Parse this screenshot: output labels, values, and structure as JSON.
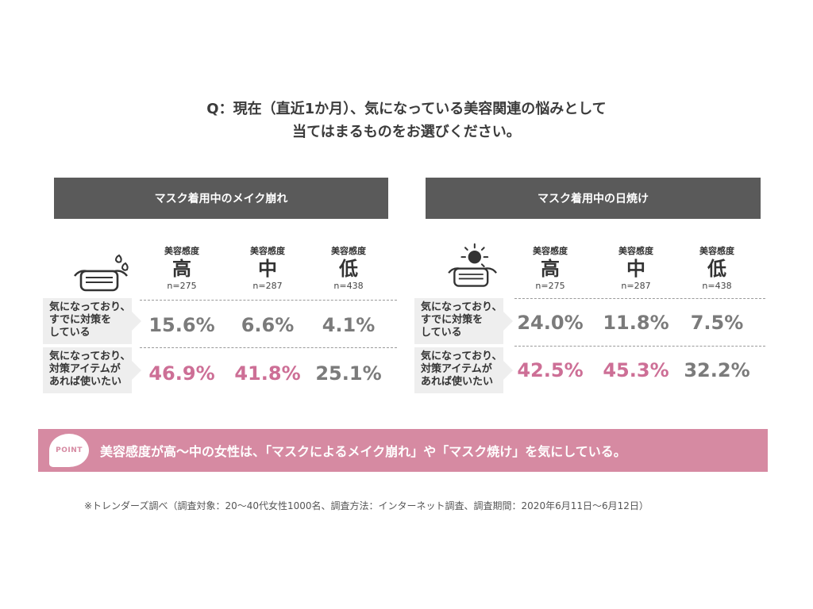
{
  "question": {
    "line1": "Q：現在（直近1か月）、気になっている美容関連の悩みとして",
    "line2": "当てはまるものをお選びください。"
  },
  "colors": {
    "header": "#5a5a5a",
    "pink": "#cd6f96",
    "gray_value": "#7b7b7b",
    "point_bar": "#d68aa2"
  },
  "columns": [
    {
      "label": "美容感度",
      "level": "高",
      "n": "n=275"
    },
    {
      "label": "美容感度",
      "level": "中",
      "n": "n=287"
    },
    {
      "label": "美容感度",
      "level": "低",
      "n": "n=438"
    }
  ],
  "panels": {
    "left": {
      "title": "マスク着用中のメイク崩れ",
      "icon": "mask-with-sweat-icon",
      "rows": [
        {
          "label": [
            "気になっており、",
            "すでに対策を",
            "している"
          ],
          "values": [
            "15.6%",
            "6.6%",
            "4.1%"
          ],
          "colors": [
            "gray",
            "gray",
            "gray"
          ]
        },
        {
          "label": [
            "気になっており、",
            "対策アイテムが",
            "あれば使いたい"
          ],
          "values": [
            "46.9%",
            "41.8%",
            "25.1%"
          ],
          "colors": [
            "pink",
            "pink",
            "gray"
          ]
        }
      ]
    },
    "right": {
      "title": "マスク着用中の日焼け",
      "icon": "mask-with-sun-icon",
      "rows": [
        {
          "label": [
            "気になっており、",
            "すでに対策を",
            "している"
          ],
          "values": [
            "24.0%",
            "11.8%",
            "7.5%"
          ],
          "colors": [
            "gray",
            "gray",
            "gray"
          ]
        },
        {
          "label": [
            "気になっており、",
            "対策アイテムが",
            "あれば使いたい"
          ],
          "values": [
            "42.5%",
            "45.3%",
            "32.2%"
          ],
          "colors": [
            "pink",
            "pink",
            "gray"
          ]
        }
      ]
    }
  },
  "point": {
    "badge": "POINT",
    "text": "美容感度が高〜中の女性は、「マスクによるメイク崩れ」や「マスク焼け」を気にしている。"
  },
  "footnote": "※トレンダーズ調べ（調査対象：20〜40代女性1000名、調査方法：インターネット調査、調査期間：2020年6月11日〜6月12日）"
}
